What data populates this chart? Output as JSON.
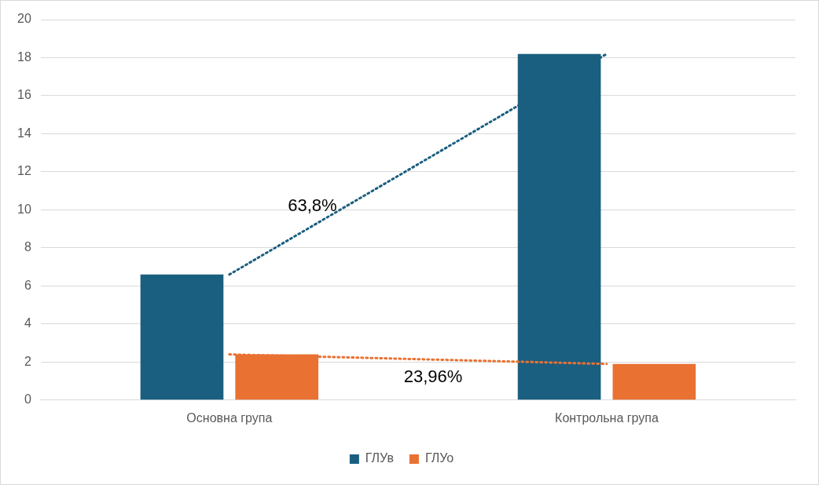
{
  "chart_data": {
    "type": "bar",
    "categories": [
      "Основна група",
      "Контрольна група"
    ],
    "series": [
      {
        "name": "ГЛУв",
        "color": "#1b5f80",
        "values": [
          6.6,
          18.2
        ]
      },
      {
        "name": "ГЛУо",
        "color": "#e97132",
        "values": [
          2.4,
          1.9
        ]
      },
      {
        "type": "line",
        "color": "#1b5f80",
        "values": [
          6.6,
          18.2
        ]
      },
      {
        "type": "line",
        "color": "#e97132",
        "values": [
          2.4,
          1.9
        ]
      }
    ],
    "ylim": [
      0,
      20
    ],
    "yticks": [
      0,
      2,
      4,
      6,
      8,
      10,
      12,
      14,
      16,
      18,
      20
    ],
    "grid": "y",
    "legend": "bottom",
    "marker": "none",
    "line_style": "dotted",
    "annotations": [
      "63,8%",
      "23,96%"
    ]
  }
}
